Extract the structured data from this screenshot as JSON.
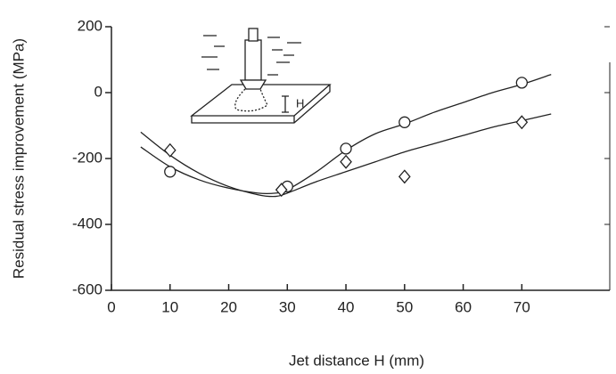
{
  "chart_data": {
    "type": "scatter",
    "xlabel": "Jet distance   H   (mm)",
    "ylabel": "Residual stress improvement  (MPa)",
    "inset_label": "H",
    "xlim": [
      0,
      85
    ],
    "xticks": [
      0,
      10,
      20,
      30,
      40,
      50,
      60,
      70
    ],
    "ylim": [
      -600,
      200
    ],
    "yticks": [
      -600,
      -400,
      -200,
      0,
      200
    ],
    "color": "#222222",
    "series": [
      {
        "kind": "circle",
        "x": [
          10,
          30,
          40,
          50,
          70
        ],
        "values": [
          -240,
          -285,
          -170,
          -90,
          30
        ]
      },
      {
        "kind": "diamond",
        "x": [
          10,
          29,
          40,
          50,
          70
        ],
        "values": [
          -175,
          -295,
          -210,
          -255,
          -90
        ]
      },
      {
        "kind": "line",
        "x": [
          5,
          10,
          15,
          20,
          25,
          28,
          30,
          35,
          40,
          45,
          50,
          55,
          60,
          65,
          70,
          75
        ],
        "values": [
          -165,
          -225,
          -265,
          -290,
          -305,
          -305,
          -295,
          -240,
          -175,
          -125,
          -95,
          -60,
          -30,
          0,
          25,
          55
        ]
      },
      {
        "kind": "line",
        "x": [
          5,
          10,
          15,
          20,
          25,
          28,
          30,
          35,
          40,
          45,
          50,
          55,
          60,
          65,
          70,
          75
        ],
        "values": [
          -120,
          -190,
          -245,
          -285,
          -310,
          -315,
          -305,
          -270,
          -240,
          -210,
          -180,
          -155,
          -130,
          -105,
          -85,
          -65
        ]
      }
    ]
  }
}
